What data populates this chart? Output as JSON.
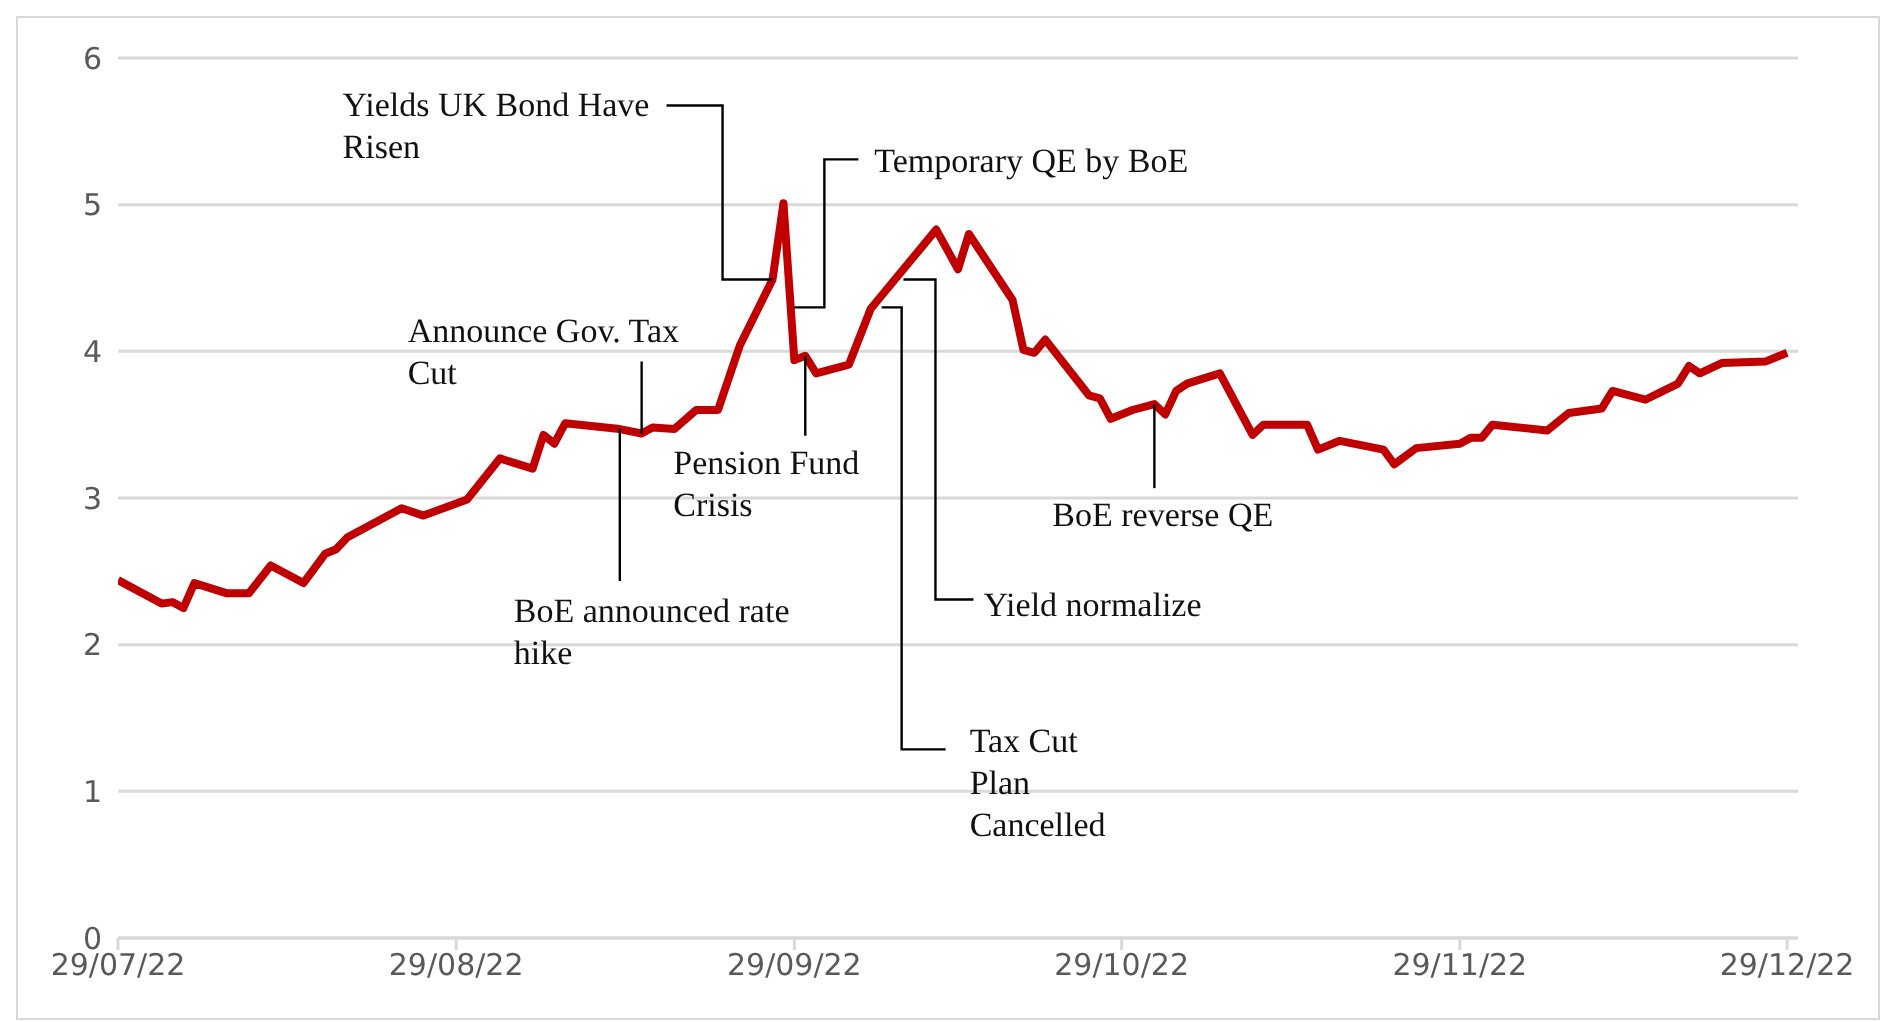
{
  "chart_data": {
    "type": "line",
    "x": [
      "2022-07-29",
      "2022-08-02",
      "2022-08-03",
      "2022-08-04",
      "2022-08-05",
      "2022-08-08",
      "2022-08-10",
      "2022-08-12",
      "2022-08-15",
      "2022-08-17",
      "2022-08-18",
      "2022-08-19",
      "2022-08-24",
      "2022-08-26",
      "2022-08-30",
      "2022-09-02",
      "2022-09-05",
      "2022-09-06",
      "2022-09-07",
      "2022-09-08",
      "2022-09-13",
      "2022-09-15",
      "2022-09-16",
      "2022-09-18",
      "2022-09-20",
      "2022-09-22",
      "2022-09-24",
      "2022-09-27",
      "2022-09-28",
      "2022-09-29",
      "2022-09-30",
      "2022-10-01",
      "2022-10-04",
      "2022-10-06",
      "2022-10-10",
      "2022-10-12",
      "2022-10-14",
      "2022-10-15",
      "2022-10-19",
      "2022-10-20",
      "2022-10-21",
      "2022-10-22",
      "2022-10-26",
      "2022-10-27",
      "2022-10-28",
      "2022-10-30",
      "2022-11-01",
      "2022-11-02",
      "2022-11-03",
      "2022-11-04",
      "2022-11-07",
      "2022-11-10",
      "2022-11-11",
      "2022-11-15",
      "2022-11-16",
      "2022-11-18",
      "2022-11-22",
      "2022-11-23",
      "2022-11-25",
      "2022-11-29",
      "2022-11-30",
      "2022-12-01",
      "2022-12-02",
      "2022-12-07",
      "2022-12-09",
      "2022-12-12",
      "2022-12-13",
      "2022-12-16",
      "2022-12-19",
      "2022-12-20",
      "2022-12-21",
      "2022-12-23",
      "2022-12-27",
      "2022-12-29"
    ],
    "series": [
      {
        "color": "#c00000",
        "values": [
          2.44,
          2.28,
          2.29,
          2.25,
          2.42,
          2.35,
          2.35,
          2.54,
          2.42,
          2.62,
          2.65,
          2.73,
          2.93,
          2.88,
          2.99,
          3.27,
          3.2,
          3.43,
          3.37,
          3.51,
          3.47,
          3.44,
          3.48,
          3.47,
          3.6,
          3.6,
          4.04,
          4.49,
          5.01,
          3.94,
          3.97,
          3.85,
          3.91,
          4.29,
          4.65,
          4.83,
          4.56,
          4.8,
          4.35,
          4.01,
          3.99,
          4.08,
          3.7,
          3.68,
          3.54,
          3.6,
          3.64,
          3.57,
          3.73,
          3.78,
          3.85,
          3.43,
          3.5,
          3.5,
          3.33,
          3.39,
          3.33,
          3.23,
          3.34,
          3.37,
          3.41,
          3.41,
          3.5,
          3.46,
          3.58,
          3.61,
          3.73,
          3.67,
          3.78,
          3.9,
          3.85,
          3.92,
          3.93,
          3.99
        ]
      }
    ],
    "xlim": [
      "2022-07-29",
      "2022-12-30"
    ],
    "xticks": [
      {
        "value": "2022-07-29",
        "label": "29/07/22"
      },
      {
        "value": "2022-08-29",
        "label": "29/08/22"
      },
      {
        "value": "2022-09-29",
        "label": "29/09/22"
      },
      {
        "value": "2022-10-29",
        "label": "29/10/22"
      },
      {
        "value": "2022-11-29",
        "label": "29/11/22"
      },
      {
        "value": "2022-12-29",
        "label": "29/12/22"
      }
    ],
    "ylim": [
      0,
      6
    ],
    "yticks": [
      0,
      1,
      2,
      3,
      4,
      5,
      6
    ],
    "grid": "y",
    "legend": false,
    "marker": "none",
    "line_style": "solid",
    "annotations": [
      {
        "text": "Yields UK Bond Have Risen",
        "x": "2022-09-27",
        "y": 4.49
      },
      {
        "text": "Temporary QE by BoE",
        "x": "2022-09-29",
        "y": 4.3
      },
      {
        "text": "Announce Gov. Tax Cut",
        "x": "2022-09-15",
        "y": 3.44
      },
      {
        "text": "BoE announced rate hike",
        "x": "2022-09-13",
        "y": 3.47
      },
      {
        "text": "Pension Fund Crisis",
        "x": "2022-09-30",
        "y": 3.97
      },
      {
        "text": "Tax Cut Plan Cancelled",
        "x": "2022-10-07",
        "y": 4.3
      },
      {
        "text": "Yield normalize",
        "x": "2022-10-09",
        "y": 4.49
      },
      {
        "text": "BoE reverse QE",
        "x": "2022-11-01",
        "y": 3.64
      }
    ]
  }
}
